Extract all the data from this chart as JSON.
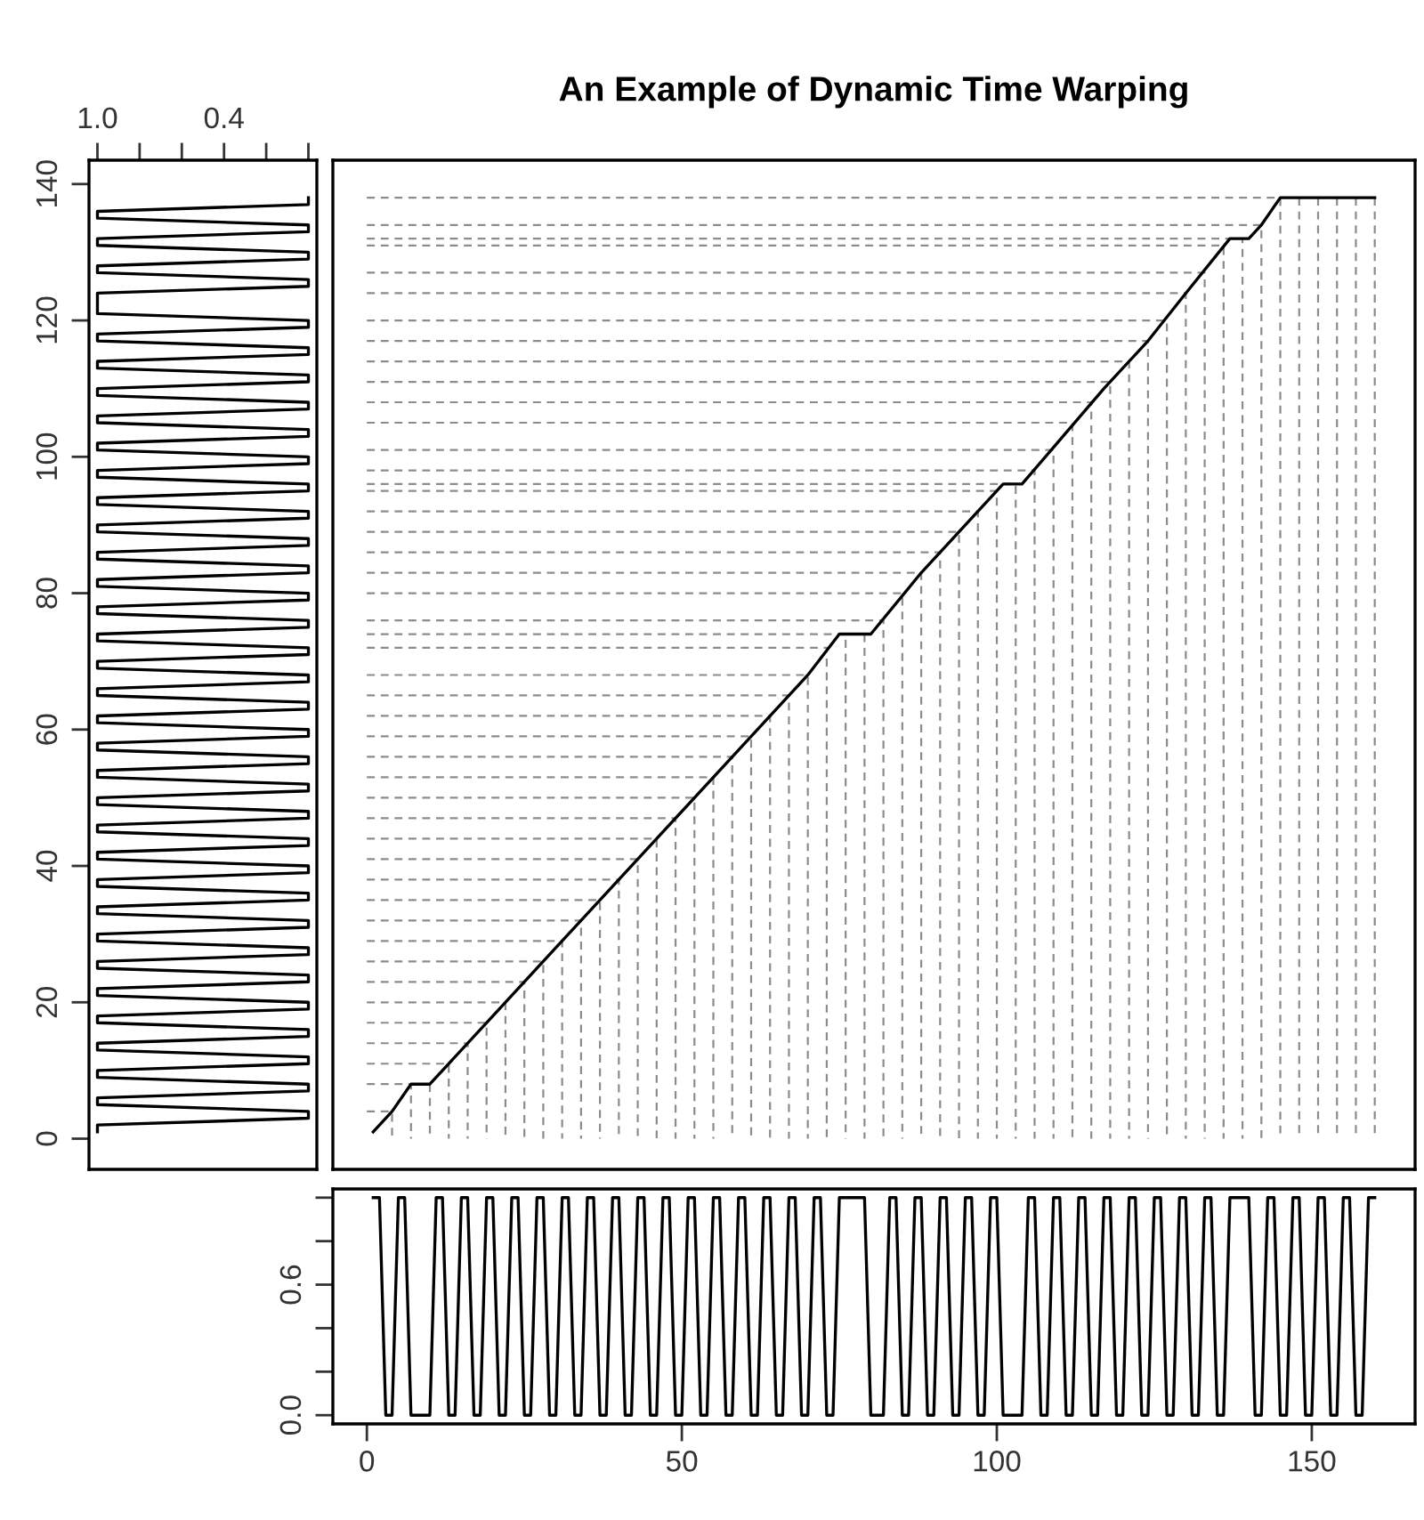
{
  "chart_data": [
    {
      "type": "line",
      "orientation": "horizontal",
      "color": "#000000",
      "x": [
        1,
        2,
        3,
        4,
        5,
        6,
        7,
        8,
        9,
        10,
        11,
        12,
        13,
        14,
        15,
        16,
        17,
        18,
        19,
        20,
        21,
        22,
        23,
        24,
        25,
        26,
        27,
        28,
        29,
        30,
        31,
        32,
        33,
        34,
        35,
        36,
        37,
        38,
        39,
        40,
        41,
        42,
        43,
        44,
        45,
        46,
        47,
        48,
        49,
        50,
        51,
        52,
        53,
        54,
        55,
        56,
        57,
        58,
        59,
        60,
        61,
        62,
        63,
        64,
        65,
        66,
        67,
        68,
        69,
        70,
        71,
        72,
        73,
        74,
        75,
        76,
        77,
        78,
        79,
        80,
        81,
        82,
        83,
        84,
        85,
        86,
        87,
        88,
        89,
        90,
        91,
        92,
        93,
        94,
        95,
        96,
        97,
        98,
        99,
        100,
        101,
        102,
        103,
        104,
        105,
        106,
        107,
        108,
        109,
        110,
        111,
        112,
        113,
        114,
        115,
        116,
        117,
        118,
        119,
        120,
        121,
        122,
        123,
        124,
        125,
        126,
        127,
        128,
        129,
        130,
        131,
        132,
        133,
        134,
        135,
        136,
        137,
        138
      ],
      "values": [
        1,
        1,
        0,
        0,
        1,
        1,
        0,
        0,
        1,
        1,
        0,
        0,
        1,
        1,
        0,
        0,
        1,
        1,
        0,
        0,
        1,
        1,
        0,
        0,
        1,
        1,
        0,
        0,
        1,
        1,
        0,
        0,
        1,
        1,
        0,
        0,
        1,
        1,
        0,
        0,
        1,
        1,
        0,
        0,
        1,
        1,
        0,
        0,
        1,
        1,
        0,
        0,
        1,
        1,
        0,
        0,
        1,
        1,
        0,
        0,
        1,
        1,
        0,
        0,
        1,
        1,
        0,
        0,
        1,
        1,
        0,
        0,
        1,
        1,
        0,
        0,
        1,
        1,
        0,
        0,
        1,
        1,
        0,
        0,
        1,
        1,
        0,
        0,
        1,
        1,
        0,
        0,
        1,
        1,
        0,
        0,
        1,
        1,
        0,
        0,
        1,
        1,
        0,
        0,
        1,
        1,
        0,
        0,
        1,
        1,
        0,
        0,
        1,
        1,
        0,
        0,
        1,
        1,
        0,
        0,
        1,
        1,
        1,
        1,
        0,
        0,
        1,
        1,
        0,
        0,
        1,
        1,
        0,
        0,
        1,
        1,
        0,
        0
      ],
      "xlim": [
        1.04,
        -0.04
      ],
      "xticks": [
        {
          "value": 1.0,
          "label": "1.0"
        },
        {
          "value": 0.8,
          "label": null
        },
        {
          "value": 0.6,
          "label": null
        },
        {
          "value": 0.4,
          "label": "0.4"
        },
        {
          "value": 0.2,
          "label": null
        },
        {
          "value": 0.0,
          "label": null
        }
      ],
      "ylim": [
        -4.5,
        143.5
      ],
      "yticks": [
        0,
        20,
        40,
        60,
        80,
        100,
        120,
        140
      ]
    },
    {
      "type": "line",
      "title": "An Example of Dynamic Time Warping",
      "tick_labels": false,
      "series": [
        {
          "color": "#000000",
          "x": [
            1,
            4,
            7,
            10,
            20,
            30,
            46,
            60,
            70,
            75,
            80,
            88,
            101,
            104,
            117,
            124,
            130,
            137,
            140,
            142,
            145,
            160
          ],
          "values": [
            1,
            4,
            8,
            8,
            18,
            28,
            44,
            58,
            68,
            74,
            74,
            83,
            96,
            96,
            110,
            117,
            124,
            132,
            132,
            134,
            138,
            138
          ]
        },
        {
          "color": "#8c8c8c",
          "line_style": "dashed",
          "x": [
            0,
            4,
            4
          ],
          "values": [
            4,
            4,
            0
          ]
        },
        {
          "color": "#8c8c8c",
          "line_style": "dashed",
          "x": [
            0,
            7,
            7
          ],
          "values": [
            8,
            8,
            0
          ]
        },
        {
          "color": "#8c8c8c",
          "line_style": "dashed",
          "x": [
            10,
            10
          ],
          "values": [
            8,
            0
          ]
        },
        {
          "color": "#8c8c8c",
          "line_style": "dashed",
          "x": [
            0,
            13,
            13
          ],
          "values": [
            11,
            11,
            0
          ]
        },
        {
          "color": "#8c8c8c",
          "line_style": "dashed",
          "x": [
            0,
            16,
            16
          ],
          "values": [
            14,
            14,
            0
          ]
        },
        {
          "color": "#8c8c8c",
          "line_style": "dashed",
          "x": [
            0,
            19,
            19
          ],
          "values": [
            17,
            17,
            0
          ]
        },
        {
          "color": "#8c8c8c",
          "line_style": "dashed",
          "x": [
            0,
            22,
            22
          ],
          "values": [
            20,
            20,
            0
          ]
        },
        {
          "color": "#8c8c8c",
          "line_style": "dashed",
          "x": [
            0,
            25,
            25
          ],
          "values": [
            23,
            23,
            0
          ]
        },
        {
          "color": "#8c8c8c",
          "line_style": "dashed",
          "x": [
            0,
            28,
            28
          ],
          "values": [
            26,
            26,
            0
          ]
        },
        {
          "color": "#8c8c8c",
          "line_style": "dashed",
          "x": [
            0,
            31,
            31
          ],
          "values": [
            29,
            29,
            0
          ]
        },
        {
          "color": "#8c8c8c",
          "line_style": "dashed",
          "x": [
            0,
            34,
            34
          ],
          "values": [
            32,
            32,
            0
          ]
        },
        {
          "color": "#8c8c8c",
          "line_style": "dashed",
          "x": [
            0,
            37,
            37
          ],
          "values": [
            35,
            35,
            0
          ]
        },
        {
          "color": "#8c8c8c",
          "line_style": "dashed",
          "x": [
            0,
            40,
            40
          ],
          "values": [
            38,
            38,
            0
          ]
        },
        {
          "color": "#8c8c8c",
          "line_style": "dashed",
          "x": [
            0,
            43,
            43
          ],
          "values": [
            41,
            41,
            0
          ]
        },
        {
          "color": "#8c8c8c",
          "line_style": "dashed",
          "x": [
            0,
            46,
            46
          ],
          "values": [
            44,
            44,
            0
          ]
        },
        {
          "color": "#8c8c8c",
          "line_style": "dashed",
          "x": [
            0,
            49,
            49
          ],
          "values": [
            47,
            47,
            0
          ]
        },
        {
          "color": "#8c8c8c",
          "line_style": "dashed",
          "x": [
            0,
            52,
            52
          ],
          "values": [
            50,
            50,
            0
          ]
        },
        {
          "color": "#8c8c8c",
          "line_style": "dashed",
          "x": [
            0,
            55,
            55
          ],
          "values": [
            53,
            53,
            0
          ]
        },
        {
          "color": "#8c8c8c",
          "line_style": "dashed",
          "x": [
            0,
            58,
            58
          ],
          "values": [
            56,
            56,
            0
          ]
        },
        {
          "color": "#8c8c8c",
          "line_style": "dashed",
          "x": [
            0,
            61,
            61
          ],
          "values": [
            59,
            59,
            0
          ]
        },
        {
          "color": "#8c8c8c",
          "line_style": "dashed",
          "x": [
            0,
            64,
            64
          ],
          "values": [
            62,
            62,
            0
          ]
        },
        {
          "color": "#8c8c8c",
          "line_style": "dashed",
          "x": [
            0,
            67,
            67
          ],
          "values": [
            65,
            65,
            0
          ]
        },
        {
          "color": "#8c8c8c",
          "line_style": "dashed",
          "x": [
            0,
            70,
            70
          ],
          "values": [
            68,
            68,
            0
          ]
        },
        {
          "color": "#8c8c8c",
          "line_style": "dashed",
          "x": [
            0,
            73,
            73
          ],
          "values": [
            72,
            72,
            0
          ]
        },
        {
          "color": "#8c8c8c",
          "line_style": "dashed",
          "x": [
            0,
            76,
            76
          ],
          "values": [
            74,
            74,
            0
          ]
        },
        {
          "color": "#8c8c8c",
          "line_style": "dashed",
          "x": [
            79,
            79
          ],
          "values": [
            74,
            0
          ]
        },
        {
          "color": "#8c8c8c",
          "line_style": "dashed",
          "x": [
            0,
            82,
            82
          ],
          "values": [
            76,
            76,
            0
          ]
        },
        {
          "color": "#8c8c8c",
          "line_style": "dashed",
          "x": [
            0,
            85,
            85
          ],
          "values": [
            80,
            80,
            0
          ]
        },
        {
          "color": "#8c8c8c",
          "line_style": "dashed",
          "x": [
            0,
            88,
            88
          ],
          "values": [
            83,
            83,
            0
          ]
        },
        {
          "color": "#8c8c8c",
          "line_style": "dashed",
          "x": [
            0,
            91,
            91
          ],
          "values": [
            86,
            86,
            0
          ]
        },
        {
          "color": "#8c8c8c",
          "line_style": "dashed",
          "x": [
            0,
            94,
            94
          ],
          "values": [
            89,
            89,
            0
          ]
        },
        {
          "color": "#8c8c8c",
          "line_style": "dashed",
          "x": [
            0,
            97,
            97
          ],
          "values": [
            92,
            92,
            0
          ]
        },
        {
          "color": "#8c8c8c",
          "line_style": "dashed",
          "x": [
            0,
            100,
            100
          ],
          "values": [
            95,
            95,
            0
          ]
        },
        {
          "color": "#8c8c8c",
          "line_style": "dashed",
          "x": [
            0,
            103,
            103
          ],
          "values": [
            96,
            96,
            0
          ]
        },
        {
          "color": "#8c8c8c",
          "line_style": "dashed",
          "x": [
            0,
            106,
            106
          ],
          "values": [
            98,
            98,
            0
          ]
        },
        {
          "color": "#8c8c8c",
          "line_style": "dashed",
          "x": [
            0,
            109,
            109
          ],
          "values": [
            101,
            101,
            0
          ]
        },
        {
          "color": "#8c8c8c",
          "line_style": "dashed",
          "x": [
            0,
            112,
            112
          ],
          "values": [
            105,
            105,
            0
          ]
        },
        {
          "color": "#8c8c8c",
          "line_style": "dashed",
          "x": [
            0,
            115,
            115
          ],
          "values": [
            108,
            108,
            0
          ]
        },
        {
          "color": "#8c8c8c",
          "line_style": "dashed",
          "x": [
            0,
            118,
            118
          ],
          "values": [
            111,
            111,
            0
          ]
        },
        {
          "color": "#8c8c8c",
          "line_style": "dashed",
          "x": [
            0,
            121,
            121
          ],
          "values": [
            114,
            114,
            0
          ]
        },
        {
          "color": "#8c8c8c",
          "line_style": "dashed",
          "x": [
            0,
            124,
            124
          ],
          "values": [
            117,
            117,
            0
          ]
        },
        {
          "color": "#8c8c8c",
          "line_style": "dashed",
          "x": [
            0,
            127,
            127
          ],
          "values": [
            120,
            120,
            0
          ]
        },
        {
          "color": "#8c8c8c",
          "line_style": "dashed",
          "x": [
            0,
            130,
            130
          ],
          "values": [
            124,
            124,
            0
          ]
        },
        {
          "color": "#8c8c8c",
          "line_style": "dashed",
          "x": [
            0,
            133,
            133
          ],
          "values": [
            127,
            127,
            0
          ]
        },
        {
          "color": "#8c8c8c",
          "line_style": "dashed",
          "x": [
            0,
            136,
            136
          ],
          "values": [
            131,
            131,
            0
          ]
        },
        {
          "color": "#8c8c8c",
          "line_style": "dashed",
          "x": [
            0,
            139,
            139
          ],
          "values": [
            132,
            132,
            0
          ]
        },
        {
          "color": "#8c8c8c",
          "line_style": "dashed",
          "x": [
            0,
            142,
            142
          ],
          "values": [
            134,
            134,
            0
          ]
        },
        {
          "color": "#8c8c8c",
          "line_style": "dashed",
          "x": [
            0,
            145,
            145
          ],
          "values": [
            138,
            138,
            0
          ]
        },
        {
          "color": "#8c8c8c",
          "line_style": "dashed",
          "x": [
            148,
            148
          ],
          "values": [
            138,
            0
          ]
        },
        {
          "color": "#8c8c8c",
          "line_style": "dashed",
          "x": [
            151,
            151
          ],
          "values": [
            138,
            0
          ]
        },
        {
          "color": "#8c8c8c",
          "line_style": "dashed",
          "x": [
            154,
            154
          ],
          "values": [
            138,
            0
          ]
        },
        {
          "color": "#8c8c8c",
          "line_style": "dashed",
          "x": [
            157,
            157
          ],
          "values": [
            138,
            0
          ]
        },
        {
          "color": "#8c8c8c",
          "line_style": "dashed",
          "x": [
            160,
            160
          ],
          "values": [
            138,
            0
          ]
        }
      ],
      "xlim": [
        -5.4,
        166.4
      ],
      "ylim": [
        -4.5,
        143.5
      ]
    },
    {
      "type": "line",
      "color": "#000000",
      "x": [
        1,
        2,
        3,
        4,
        5,
        6,
        7,
        8,
        9,
        10,
        11,
        12,
        13,
        14,
        15,
        16,
        17,
        18,
        19,
        20,
        21,
        22,
        23,
        24,
        25,
        26,
        27,
        28,
        29,
        30,
        31,
        32,
        33,
        34,
        35,
        36,
        37,
        38,
        39,
        40,
        41,
        42,
        43,
        44,
        45,
        46,
        47,
        48,
        49,
        50,
        51,
        52,
        53,
        54,
        55,
        56,
        57,
        58,
        59,
        60,
        61,
        62,
        63,
        64,
        65,
        66,
        67,
        68,
        69,
        70,
        71,
        72,
        73,
        74,
        75,
        76,
        77,
        78,
        79,
        80,
        81,
        82,
        83,
        84,
        85,
        86,
        87,
        88,
        89,
        90,
        91,
        92,
        93,
        94,
        95,
        96,
        97,
        98,
        99,
        100,
        101,
        102,
        103,
        104,
        105,
        106,
        107,
        108,
        109,
        110,
        111,
        112,
        113,
        114,
        115,
        116,
        117,
        118,
        119,
        120,
        121,
        122,
        123,
        124,
        125,
        126,
        127,
        128,
        129,
        130,
        131,
        132,
        133,
        134,
        135,
        136,
        137,
        138,
        139,
        140,
        141,
        142,
        143,
        144,
        145,
        146,
        147,
        148,
        149,
        150,
        151,
        152,
        153,
        154,
        155,
        156,
        157,
        158,
        159,
        160
      ],
      "values": [
        1,
        1,
        0,
        0,
        1,
        1,
        0,
        0,
        0,
        0,
        1,
        1,
        0,
        0,
        1,
        1,
        0,
        0,
        1,
        1,
        0,
        0,
        1,
        1,
        0,
        0,
        1,
        1,
        0,
        0,
        1,
        1,
        0,
        0,
        1,
        1,
        0,
        0,
        1,
        1,
        0,
        0,
        1,
        1,
        0,
        0,
        1,
        1,
        0,
        0,
        1,
        1,
        0,
        0,
        1,
        1,
        0,
        0,
        1,
        1,
        0,
        0,
        1,
        1,
        0,
        0,
        1,
        1,
        0,
        0,
        1,
        1,
        0,
        0,
        1,
        1,
        1,
        1,
        1,
        0,
        0,
        0,
        1,
        1,
        0,
        0,
        1,
        1,
        0,
        0,
        1,
        1,
        0,
        0,
        1,
        1,
        0,
        0,
        1,
        1,
        0,
        0,
        0,
        0,
        1,
        1,
        0,
        0,
        1,
        1,
        0,
        0,
        1,
        1,
        0,
        0,
        1,
        1,
        0,
        0,
        1,
        1,
        0,
        0,
        1,
        1,
        0,
        0,
        1,
        1,
        0,
        0,
        1,
        1,
        0,
        0,
        1,
        1,
        1,
        1,
        0,
        0,
        1,
        1,
        0,
        0,
        1,
        1,
        0,
        0,
        1,
        1,
        0,
        0,
        1,
        1,
        0,
        0,
        1,
        1
      ],
      "xlim": [
        -5.4,
        166.4
      ],
      "xticks": [
        0,
        50,
        100,
        150
      ],
      "ylim": [
        -0.04,
        1.04
      ],
      "yticks": [
        {
          "value": 0.0,
          "label": "0.0"
        },
        {
          "value": 0.2,
          "label": null
        },
        {
          "value": 0.4,
          "label": null
        },
        {
          "value": 0.6,
          "label": "0.6"
        },
        {
          "value": 0.8,
          "label": null
        },
        {
          "value": 1.0,
          "label": null
        }
      ]
    }
  ]
}
